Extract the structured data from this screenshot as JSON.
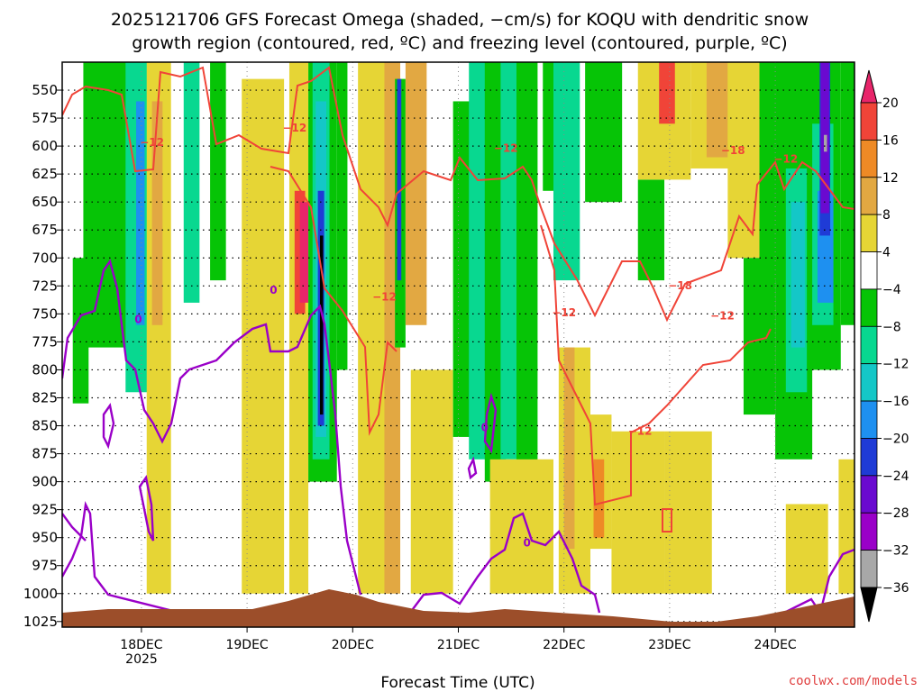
{
  "chart_data": {
    "type": "heatmap",
    "title_line1": "2025121706 GFS Forecast Omega (shaded, −cm/s) for KOQU with dendritic snow",
    "title_line2": "growth region (contoured, red, ºC) and freezing level (contoured, purple, ºC)",
    "xlabel": "Forecast Time (UTC)",
    "credit": "coolwx.com/models",
    "y_axis": {
      "unit": "hPa",
      "range": [
        525,
        1030
      ],
      "ticks": [
        "550",
        "575",
        "600",
        "625",
        "650",
        "675",
        "700",
        "725",
        "750",
        "775",
        "800",
        "825",
        "850",
        "875",
        "900",
        "925",
        "950",
        "975",
        "1000",
        "1025"
      ]
    },
    "x_axis": {
      "range_days": [
        17.25,
        24.75
      ],
      "ticks": [
        {
          "day": 18,
          "label": "18DEC"
        },
        {
          "day": 19,
          "label": "19DEC"
        },
        {
          "day": 20,
          "label": "20DEC"
        },
        {
          "day": 21,
          "label": "21DEC"
        },
        {
          "day": 22,
          "label": "22DEC"
        },
        {
          "day": 23,
          "label": "23DEC"
        },
        {
          "day": 24,
          "label": "24DEC"
        }
      ],
      "year_label": "2025"
    },
    "colorbar": {
      "labels": [
        "20",
        "16",
        "12",
        "8",
        "4",
        "−4",
        "−8",
        "−12",
        "−16",
        "−20",
        "−24",
        "−28",
        "−32",
        "−36"
      ],
      "colors": [
        "#e8256a",
        "#f04438",
        "#ee8a26",
        "#e2a842",
        "#e6d535",
        "#ffffff",
        "#06c406",
        "#08d890",
        "#14c7c7",
        "#1e90f0",
        "#1f3bd6",
        "#6a0ad0",
        "#9a00c8",
        "#a8a8a8",
        "#000000"
      ]
    },
    "omega_bands": [
      {
        "d0": 17.45,
        "d1": 17.9,
        "p0": 525,
        "p1": 780,
        "color": "#06c406"
      },
      {
        "d0": 17.85,
        "d1": 18.1,
        "p0": 525,
        "p1": 820,
        "color": "#08d890"
      },
      {
        "d0": 17.95,
        "d1": 18.03,
        "p0": 560,
        "p1": 760,
        "color": "#1e90f0"
      },
      {
        "d0": 18.05,
        "d1": 18.28,
        "p0": 525,
        "p1": 1000,
        "color": "#e6d535"
      },
      {
        "d0": 18.1,
        "d1": 18.2,
        "p0": 560,
        "p1": 760,
        "color": "#e2a842"
      },
      {
        "d0": 18.4,
        "d1": 18.55,
        "p0": 525,
        "p1": 740,
        "color": "#08d890"
      },
      {
        "d0": 17.35,
        "d1": 17.5,
        "p0": 700,
        "p1": 830,
        "color": "#06c406"
      },
      {
        "d0": 18.65,
        "d1": 18.8,
        "p0": 525,
        "p1": 720,
        "color": "#06c406"
      },
      {
        "d0": 18.95,
        "d1": 19.35,
        "p0": 540,
        "p1": 1000,
        "color": "#e6d535"
      },
      {
        "d0": 19.4,
        "d1": 19.58,
        "p0": 525,
        "p1": 1000,
        "color": "#e6d535"
      },
      {
        "d0": 19.45,
        "d1": 19.55,
        "p0": 640,
        "p1": 750,
        "color": "#f04438"
      },
      {
        "d0": 19.5,
        "d1": 19.58,
        "p0": 650,
        "p1": 740,
        "color": "#e8256a"
      },
      {
        "d0": 19.58,
        "d1": 19.85,
        "p0": 525,
        "p1": 900,
        "color": "#06c406"
      },
      {
        "d0": 19.62,
        "d1": 19.78,
        "p0": 525,
        "p1": 880,
        "color": "#08d890"
      },
      {
        "d0": 19.65,
        "d1": 19.75,
        "p0": 560,
        "p1": 860,
        "color": "#14c7c7"
      },
      {
        "d0": 19.67,
        "d1": 19.73,
        "p0": 640,
        "p1": 850,
        "color": "#1f3bd6"
      },
      {
        "d0": 19.69,
        "d1": 19.72,
        "p0": 680,
        "p1": 840,
        "color": "#000000"
      },
      {
        "d0": 19.85,
        "d1": 19.95,
        "p0": 525,
        "p1": 800,
        "color": "#06c406"
      },
      {
        "d0": 20.05,
        "d1": 20.35,
        "p0": 525,
        "p1": 1000,
        "color": "#e6d535"
      },
      {
        "d0": 20.3,
        "d1": 20.45,
        "p0": 525,
        "p1": 1000,
        "color": "#e2a842"
      },
      {
        "d0": 20.4,
        "d1": 20.5,
        "p0": 540,
        "p1": 780,
        "color": "#06c406"
      },
      {
        "d0": 20.42,
        "d1": 20.46,
        "p0": 540,
        "p1": 720,
        "color": "#1f3bd6"
      },
      {
        "d0": 20.5,
        "d1": 20.7,
        "p0": 525,
        "p1": 760,
        "color": "#e2a842"
      },
      {
        "d0": 20.55,
        "d1": 20.95,
        "p0": 800,
        "p1": 1000,
        "color": "#e6d535"
      },
      {
        "d0": 20.95,
        "d1": 21.15,
        "p0": 560,
        "p1": 860,
        "color": "#06c406"
      },
      {
        "d0": 21.1,
        "d1": 21.28,
        "p0": 525,
        "p1": 880,
        "color": "#08d890"
      },
      {
        "d0": 21.25,
        "d1": 21.45,
        "p0": 525,
        "p1": 900,
        "color": "#06c406"
      },
      {
        "d0": 21.4,
        "d1": 21.6,
        "p0": 525,
        "p1": 880,
        "color": "#08d890"
      },
      {
        "d0": 21.55,
        "d1": 21.75,
        "p0": 525,
        "p1": 900,
        "color": "#06c406"
      },
      {
        "d0": 21.3,
        "d1": 21.9,
        "p0": 880,
        "p1": 1000,
        "color": "#e6d535"
      },
      {
        "d0": 21.8,
        "d1": 22.0,
        "p0": 525,
        "p1": 640,
        "color": "#06c406"
      },
      {
        "d0": 21.9,
        "d1": 22.15,
        "p0": 525,
        "p1": 720,
        "color": "#08d890"
      },
      {
        "d0": 21.95,
        "d1": 22.25,
        "p0": 780,
        "p1": 1000,
        "color": "#e6d535"
      },
      {
        "d0": 22.0,
        "d1": 22.1,
        "p0": 780,
        "p1": 960,
        "color": "#e2a842"
      },
      {
        "d0": 22.2,
        "d1": 22.55,
        "p0": 525,
        "p1": 650,
        "color": "#06c406"
      },
      {
        "d0": 22.25,
        "d1": 22.45,
        "p0": 840,
        "p1": 960,
        "color": "#e6d535"
      },
      {
        "d0": 22.28,
        "d1": 22.38,
        "p0": 880,
        "p1": 950,
        "color": "#ee8a26"
      },
      {
        "d0": 22.45,
        "d1": 22.95,
        "p0": 855,
        "p1": 1000,
        "color": "#e6d535"
      },
      {
        "d0": 22.7,
        "d1": 22.95,
        "p0": 630,
        "p1": 720,
        "color": "#06c406"
      },
      {
        "d0": 22.7,
        "d1": 23.2,
        "p0": 525,
        "p1": 630,
        "color": "#e6d535"
      },
      {
        "d0": 22.9,
        "d1": 23.05,
        "p0": 525,
        "p1": 580,
        "color": "#f04438"
      },
      {
        "d0": 23.2,
        "d1": 23.75,
        "p0": 525,
        "p1": 620,
        "color": "#e6d535"
      },
      {
        "d0": 23.35,
        "d1": 23.55,
        "p0": 525,
        "p1": 610,
        "color": "#e2a842"
      },
      {
        "d0": 23.55,
        "d1": 23.9,
        "p0": 525,
        "p1": 700,
        "color": "#e6d535"
      },
      {
        "d0": 22.95,
        "d1": 23.4,
        "p0": 855,
        "p1": 1000,
        "color": "#e6d535"
      },
      {
        "d0": 23.7,
        "d1": 24.0,
        "p0": 700,
        "p1": 840,
        "color": "#06c406"
      },
      {
        "d0": 23.85,
        "d1": 24.05,
        "p0": 525,
        "p1": 720,
        "color": "#06c406"
      },
      {
        "d0": 24.0,
        "d1": 24.35,
        "p0": 525,
        "p1": 880,
        "color": "#06c406"
      },
      {
        "d0": 24.1,
        "d1": 24.3,
        "p0": 620,
        "p1": 820,
        "color": "#08d890"
      },
      {
        "d0": 24.15,
        "d1": 24.28,
        "p0": 650,
        "p1": 780,
        "color": "#14c7c7"
      },
      {
        "d0": 24.3,
        "d1": 24.62,
        "p0": 525,
        "p1": 800,
        "color": "#06c406"
      },
      {
        "d0": 24.35,
        "d1": 24.55,
        "p0": 580,
        "p1": 760,
        "color": "#08d890"
      },
      {
        "d0": 24.4,
        "d1": 24.55,
        "p0": 640,
        "p1": 740,
        "color": "#1e90f0"
      },
      {
        "d0": 24.42,
        "d1": 24.52,
        "p0": 525,
        "p1": 680,
        "color": "#1f3bd6"
      },
      {
        "d0": 24.43,
        "d1": 24.51,
        "p0": 525,
        "p1": 660,
        "color": "#6a0ad0"
      },
      {
        "d0": 24.46,
        "d1": 24.49,
        "p0": 590,
        "p1": 605,
        "color": "#a8a8a8"
      },
      {
        "d0": 24.62,
        "d1": 24.75,
        "p0": 525,
        "p1": 760,
        "color": "#06c406"
      },
      {
        "d0": 24.6,
        "d1": 24.75,
        "p0": 880,
        "p1": 1000,
        "color": "#e6d535"
      },
      {
        "d0": 24.1,
        "d1": 24.5,
        "p0": 920,
        "p1": 1000,
        "color": "#e6d535"
      }
    ],
    "dgz_labels": [
      {
        "day": 18.1,
        "p": 600,
        "text": "−12"
      },
      {
        "day": 19.45,
        "p": 587,
        "text": "−12"
      },
      {
        "day": 20.3,
        "p": 738,
        "text": "−12"
      },
      {
        "day": 21.45,
        "p": 605,
        "text": "−12"
      },
      {
        "day": 22.0,
        "p": 752,
        "text": "−12"
      },
      {
        "day": 22.72,
        "p": 858,
        "text": "−12"
      },
      {
        "day": 23.1,
        "p": 728,
        "text": "−18"
      },
      {
        "day": 23.5,
        "p": 755,
        "text": "−12"
      },
      {
        "day": 23.6,
        "p": 607,
        "text": "−18"
      },
      {
        "day": 24.1,
        "p": 615,
        "text": "−12"
      }
    ],
    "freezing_labels": [
      {
        "day": 19.25,
        "p": 732,
        "text": "0"
      },
      {
        "day": 17.97,
        "p": 758,
        "text": "0"
      },
      {
        "day": 21.25,
        "p": 855,
        "text": "0"
      },
      {
        "day": 21.65,
        "p": 958,
        "text": "0"
      }
    ]
  }
}
